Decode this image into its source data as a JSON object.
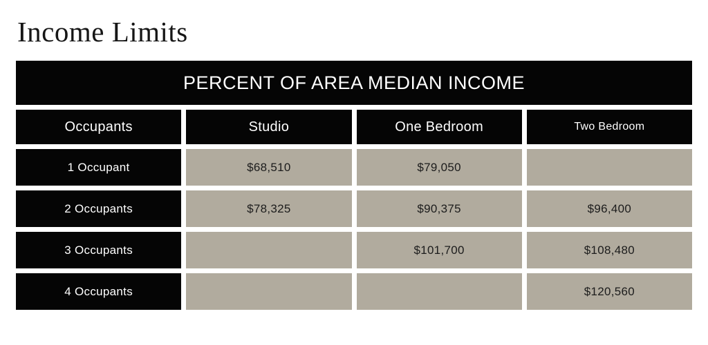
{
  "page": {
    "title": "Income Limits"
  },
  "table": {
    "band_title": "PERCENT OF AREA MEDIAN INCOME",
    "columns": [
      "Occupants",
      "Studio",
      "One Bedroom",
      "Two Bedroom"
    ],
    "rows": [
      {
        "label": "1 Occupant",
        "values": [
          "$68,510",
          "$79,050",
          ""
        ]
      },
      {
        "label": "2 Occupants",
        "values": [
          "$78,325",
          "$90,375",
          "$96,400"
        ]
      },
      {
        "label": "3 Occupants",
        "values": [
          "",
          "$101,700",
          "$108,480"
        ]
      },
      {
        "label": "4 Occupants",
        "values": [
          "",
          "",
          "$120,560"
        ]
      }
    ],
    "colors": {
      "cell_black": "#050505",
      "cell_beige": "#b1ab9e",
      "background": "#ffffff",
      "text_on_black": "#ffffff",
      "text_on_beige": "#1c1c1c"
    }
  },
  "chart_data": {
    "type": "table",
    "title": "PERCENT OF AREA MEDIAN INCOME",
    "categories": [
      "Studio",
      "One Bedroom",
      "Two Bedroom"
    ],
    "series": [
      {
        "name": "1 Occupant",
        "values": [
          68510,
          79050,
          null
        ]
      },
      {
        "name": "2 Occupants",
        "values": [
          78325,
          90375,
          96400
        ]
      },
      {
        "name": "3 Occupants",
        "values": [
          null,
          101700,
          108480
        ]
      },
      {
        "name": "4 Occupants",
        "values": [
          null,
          null,
          120560
        ]
      }
    ]
  }
}
